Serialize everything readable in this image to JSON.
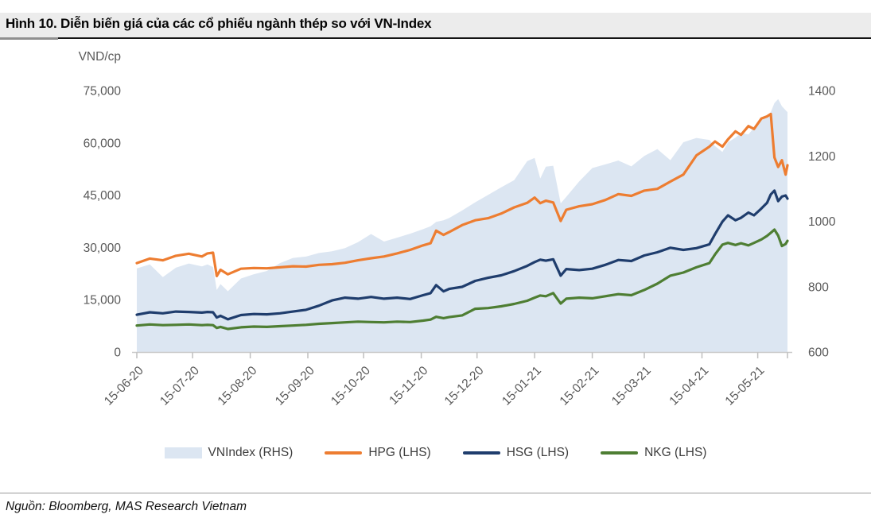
{
  "figure": {
    "title": "Hình 10. Diễn biến giá của các cổ phiếu ngành thép so với VN-Index",
    "source": "Nguồn: Bloomberg, MAS Research Vietnam"
  },
  "chart_data": {
    "type": "area",
    "subtype": "area + 3 lines, dual y-axis",
    "left_axis": {
      "title": "VND/cp",
      "ticks": [
        "0",
        "15,000",
        "30,000",
        "45,000",
        "60,000",
        "75,000"
      ],
      "tick_values": [
        0,
        15000,
        30000,
        45000,
        60000,
        75000
      ],
      "range": [
        0,
        75000
      ]
    },
    "right_axis": {
      "ticks": [
        "600",
        "800",
        "1000",
        "1200",
        "1400"
      ],
      "tick_values": [
        600,
        800,
        1000,
        1200,
        1400
      ],
      "range": [
        600,
        1400
      ]
    },
    "x_axis": {
      "labels": [
        "15-06-20",
        "15-07-20",
        "15-08-20",
        "15-09-20",
        "15-10-20",
        "15-11-20",
        "15-12-20",
        "15-01-21",
        "15-02-21",
        "15-03-21",
        "15-04-21",
        "15-05-21"
      ],
      "label_days": [
        0,
        30,
        61,
        92,
        122,
        153,
        183,
        214,
        245,
        273,
        304,
        334
      ],
      "domain_days": [
        0,
        350
      ],
      "grid": "off",
      "legend_position": "bottom"
    },
    "days": [
      0,
      7,
      14,
      21,
      28,
      35,
      38,
      41,
      43,
      45,
      49,
      56,
      63,
      70,
      77,
      84,
      91,
      98,
      105,
      112,
      119,
      126,
      133,
      140,
      147,
      154,
      158,
      161,
      165,
      168,
      175,
      182,
      189,
      196,
      203,
      210,
      214,
      217,
      220,
      224,
      228,
      231,
      238,
      245,
      252,
      259,
      266,
      273,
      280,
      287,
      294,
      301,
      308,
      311,
      315,
      318,
      322,
      325,
      329,
      332,
      336,
      339,
      341,
      343,
      345,
      347,
      349,
      350
    ],
    "series": [
      {
        "name": "VNIndex (RHS)",
        "axis": "right",
        "type": "area",
        "color": "#dce6f2",
        "values": [
          856,
          868,
          829,
          858,
          871,
          862,
          868,
          860,
          790,
          808,
          786,
          825,
          838,
          848,
          872,
          888,
          892,
          903,
          908,
          918,
          936,
          961,
          938,
          950,
          962,
          976,
          985,
          998,
          1003,
          1010,
          1033,
          1058,
          1081,
          1104,
          1126,
          1184,
          1194,
          1131,
          1167,
          1170,
          1055,
          1075,
          1122,
          1163,
          1174,
          1186,
          1168,
          1200,
          1221,
          1187,
          1242,
          1255,
          1249,
          1230,
          1212,
          1242,
          1256,
          1270,
          1266,
          1286,
          1308,
          1322,
          1334,
          1362,
          1374,
          1352,
          1340,
          1334
        ]
      },
      {
        "name": "HPG (LHS)",
        "axis": "left",
        "type": "line",
        "color": "#ed7d31",
        "values": [
          25500,
          26800,
          26300,
          27600,
          28200,
          27400,
          28300,
          28500,
          21800,
          23600,
          22300,
          23900,
          24100,
          24000,
          24300,
          24600,
          24500,
          25000,
          25200,
          25600,
          26300,
          26900,
          27400,
          28300,
          29300,
          30600,
          31200,
          34800,
          33600,
          34400,
          36400,
          37800,
          38400,
          39700,
          41500,
          42800,
          44300,
          42700,
          43400,
          42900,
          37600,
          40800,
          41800,
          42400,
          43600,
          45300,
          44800,
          46300,
          46800,
          48900,
          50900,
          56400,
          58900,
          60400,
          58900,
          61000,
          63300,
          62300,
          64800,
          64000,
          67000,
          67600,
          68300,
          55800,
          53100,
          55000,
          50900,
          53600
        ]
      },
      {
        "name": "HSG (LHS)",
        "axis": "left",
        "type": "line",
        "color": "#1f3d6d",
        "values": [
          10700,
          11400,
          11100,
          11600,
          11500,
          11300,
          11500,
          11400,
          9900,
          10400,
          9400,
          10600,
          10900,
          10800,
          11100,
          11600,
          12100,
          13300,
          14800,
          15600,
          15300,
          15800,
          15300,
          15600,
          15200,
          16300,
          16900,
          19200,
          17400,
          18100,
          18700,
          20400,
          21300,
          22000,
          23200,
          24700,
          25800,
          26500,
          26200,
          26600,
          21900,
          23800,
          23500,
          23900,
          25000,
          26400,
          26100,
          27700,
          28600,
          29900,
          29300,
          29800,
          30900,
          33800,
          37400,
          39200,
          37800,
          38500,
          40000,
          39200,
          41200,
          42800,
          45200,
          46300,
          43300,
          44600,
          44900,
          44000
        ]
      },
      {
        "name": "NKG (LHS)",
        "axis": "left",
        "type": "line",
        "color": "#4e7e33",
        "values": [
          7600,
          7900,
          7700,
          7800,
          7900,
          7700,
          7800,
          7700,
          6900,
          7200,
          6600,
          7100,
          7300,
          7200,
          7400,
          7600,
          7800,
          8100,
          8300,
          8500,
          8700,
          8600,
          8500,
          8700,
          8600,
          9000,
          9300,
          10100,
          9700,
          10000,
          10500,
          12400,
          12600,
          13100,
          13800,
          14700,
          15600,
          16200,
          16000,
          16900,
          13900,
          15300,
          15600,
          15400,
          16000,
          16600,
          16300,
          17800,
          19600,
          21900,
          22800,
          24300,
          25500,
          28000,
          30800,
          31300,
          30700,
          31200,
          30600,
          31300,
          32300,
          33300,
          34200,
          35100,
          33400,
          30400,
          31000,
          31900
        ]
      }
    ]
  }
}
